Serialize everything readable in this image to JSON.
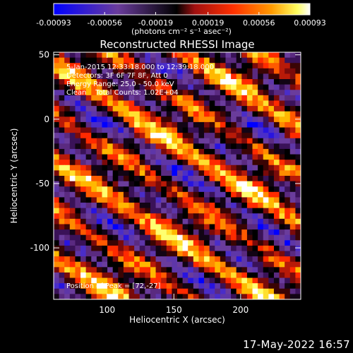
{
  "colorbar": {
    "ticks": [
      "-0.00093",
      "-0.00056",
      "-0.00019",
      "0.00019",
      "0.00056",
      "0.00093"
    ],
    "unit_label": "(photons cm⁻² s⁻¹ asec⁻²)",
    "min": -0.00093,
    "max": 0.00093
  },
  "chart_data": {
    "type": "heatmap",
    "title": "Reconstructed RHESSI Image",
    "xlabel": "Heliocentric X (arcsec)",
    "ylabel": "Heliocentric Y (arcsec)",
    "xlim": [
      60,
      245
    ],
    "ylim": [
      -140,
      52
    ],
    "x_ticks": [
      100,
      150,
      200
    ],
    "y_ticks": [
      50,
      0,
      -50,
      -100
    ],
    "grid": false,
    "pattern": "diagonal stripes running from upper-left to lower-right with peak intensity near (72,-27)",
    "peak": [
      72,
      -27
    ],
    "annotations": [
      "5-Jan-2015 12:33:18.000 to 12:39:18.000",
      "Detectors: 3F 6F 7F 8F, Att 0",
      "Energy Range: 25.0 - 50.0 keV",
      "Clean    Total Counts: 1.02E+04"
    ],
    "peak_label": "Position of Peak = [72,-27]"
  },
  "footer_timestamp": "17-May-2022 16:57",
  "colors": {
    "background": "#000000",
    "colormap": [
      "#0000ff",
      "#4a2dc8",
      "#6a3c9c",
      "#5a1e78",
      "#000000",
      "#8a1010",
      "#ff2a00",
      "#ff8c00",
      "#ffff50",
      "#ffffff"
    ]
  }
}
